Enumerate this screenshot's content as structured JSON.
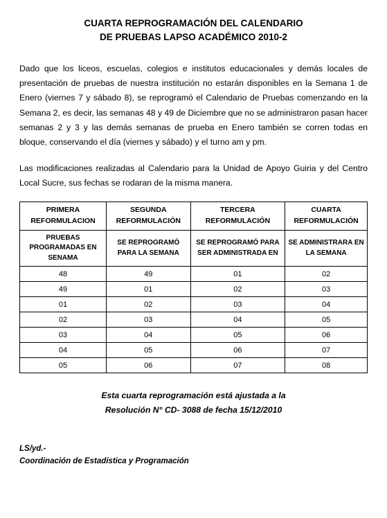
{
  "title": {
    "line1": "CUARTA REPROGRAMACIÓN DEL CALENDARIO",
    "line2": "DE PRUEBAS  LAPSO ACADÉMICO 2010-2"
  },
  "paragraphs": {
    "p1": "Dado que los liceos, escuelas, colegios e institutos educacionales y demás locales de presentación de pruebas de nuestra institución no estarán disponibles en la Semana 1 de Enero (viernes 7 y sábado 8), se reprogramó el Calendario de Pruebas comenzando en la Semana 2, es decir, las semanas 48 y 49 de Diciembre que no se administraron pasan hacer semanas 2 y 3 y las demás semanas de prueba en Enero también se corren todas en bloque, conservando el día (viernes y sábado) y el turno am y pm.",
    "p2": "Las modificaciones realizadas al Calendario para la Unidad de Apoyo Guiria y del Centro Local Sucre, sus fechas se rodaran de la misma manera."
  },
  "table": {
    "headers": {
      "c1": "PRIMERA REFORMULACION",
      "c2": "SEGUNDA REFORMULACIÓN",
      "c3": "TERCERA REFORMULACIÓN",
      "c4": "CUARTA REFORMULACIÓN"
    },
    "subheaders": {
      "c1": "PRUEBAS PROGRAMADAS EN SENAMA",
      "c2": "SE REPROGRAMÓ PARA LA SEMANA",
      "c3": "SE REPROGRAMÓ PARA SER ADMINISTRADA EN",
      "c4": "SE ADMINISTRARA EN LA SEMANA"
    },
    "rows": [
      {
        "c1": "48",
        "c2": "49",
        "c3": "01",
        "c4": "02"
      },
      {
        "c1": "49",
        "c2": "01",
        "c3": "02",
        "c4": "03"
      },
      {
        "c1": "01",
        "c2": "02",
        "c3": "03",
        "c4": "04"
      },
      {
        "c1": "02",
        "c2": "03",
        "c3": "04",
        "c4": "05"
      },
      {
        "c1": "03",
        "c2": "04",
        "c3": "05",
        "c4": "06"
      },
      {
        "c1": "04",
        "c2": "05",
        "c3": "06",
        "c4": "07"
      },
      {
        "c1": "05",
        "c2": "06",
        "c3": "07",
        "c4": "08"
      }
    ]
  },
  "footnote": {
    "line1": "Esta cuarta reprogramación está ajustada a la",
    "line2": "Resolución N° CD-  3088   de fecha 15/12/2010"
  },
  "signature": {
    "line1": "LS/yd.-",
    "line2": "Coordinación de Estadística y Programación"
  }
}
